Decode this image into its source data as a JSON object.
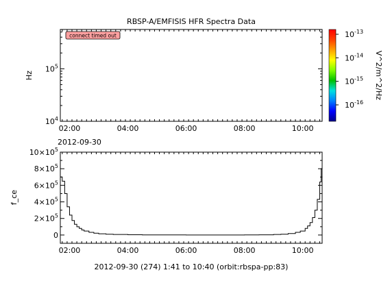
{
  "chart_data": [
    {
      "type": "heatmap",
      "title": "RBSP-A/EMFISIS  HFR Spectra Data",
      "ylabel": "Hz",
      "y_scale": "log",
      "ylim": [
        10000,
        560000
      ],
      "yticks": [
        {
          "value": 10000,
          "base": "10",
          "exp": "4"
        },
        {
          "value": 100000,
          "base": "10",
          "exp": "5"
        }
      ],
      "xlim": [
        "2012-09-30 01:41",
        "2012-09-30 10:40"
      ],
      "xticks": [
        "02:00",
        "04:00",
        "06:00",
        "08:00",
        "10:00"
      ],
      "x_date_label": "2012-09-30",
      "status_message": "connect timed out",
      "colorbar": {
        "label": "V^2/m^2/Hz",
        "scale": "log",
        "ticks": [
          {
            "value": 1e-13,
            "base": "10",
            "exp": "-13"
          },
          {
            "value": 1e-14,
            "base": "10",
            "exp": "-14"
          },
          {
            "value": 1e-15,
            "base": "10",
            "exp": "-15"
          },
          {
            "value": 1e-16,
            "base": "10",
            "exp": "-16"
          }
        ],
        "colors": [
          "#00008b",
          "#0000ff",
          "#0080ff",
          "#00e0e0",
          "#00c000",
          "#80ff00",
          "#ffff00",
          "#ffa000",
          "#ff4000",
          "#ff0000"
        ]
      },
      "values": []
    },
    {
      "type": "line",
      "ylabel": "f_ce",
      "ylim": [
        -100000,
        1000000
      ],
      "yticks": [
        {
          "value": 0,
          "label": "0",
          "exp": ""
        },
        {
          "value": 200000,
          "label": "2×10",
          "exp": "5"
        },
        {
          "value": 400000,
          "label": "4×10",
          "exp": "5"
        },
        {
          "value": 600000,
          "label": "6×10",
          "exp": "5"
        },
        {
          "value": 800000,
          "label": "8×10",
          "exp": "5"
        },
        {
          "value": 1000000,
          "label": "10×10",
          "exp": "5"
        }
      ],
      "xlim": [
        "2012-09-30 01:41",
        "2012-09-30 10:40"
      ],
      "xticks": [
        "02:00",
        "04:00",
        "06:00",
        "08:00",
        "10:00"
      ],
      "xlabel": "2012-09-30 (274) 1:41 to 10:40 (orbit:rbspa-pp:83)",
      "series": [
        {
          "color": "#000000",
          "x": [
            "2012-09-30 01:41",
            "2012-09-30 01:45",
            "2012-09-30 01:50",
            "2012-09-30 01:55",
            "2012-09-30 02:00",
            "2012-09-30 02:05",
            "2012-09-30 02:10",
            "2012-09-30 02:15",
            "2012-09-30 02:20",
            "2012-09-30 02:25",
            "2012-09-30 02:30",
            "2012-09-30 02:40",
            "2012-09-30 02:50",
            "2012-09-30 03:00",
            "2012-09-30 03:15",
            "2012-09-30 03:30",
            "2012-09-30 04:00",
            "2012-09-30 04:30",
            "2012-09-30 05:00",
            "2012-09-30 06:00",
            "2012-09-30 07:00",
            "2012-09-30 08:00",
            "2012-09-30 08:30",
            "2012-09-30 09:00",
            "2012-09-30 09:15",
            "2012-09-30 09:30",
            "2012-09-30 09:45",
            "2012-09-30 09:55",
            "2012-09-30 10:05",
            "2012-09-30 10:10",
            "2012-09-30 10:15",
            "2012-09-30 10:20",
            "2012-09-30 10:25",
            "2012-09-30 10:30",
            "2012-09-30 10:35",
            "2012-09-30 10:38",
            "2012-09-30 10:40"
          ],
          "y": [
            700000,
            650000,
            500000,
            340000,
            240000,
            175000,
            130000,
            100000,
            80000,
            60000,
            48000,
            32000,
            22000,
            15000,
            10000,
            6000,
            3000,
            1500,
            800,
            500,
            700,
            1200,
            2500,
            6000,
            10000,
            18000,
            32000,
            48000,
            80000,
            110000,
            150000,
            210000,
            300000,
            430000,
            640000,
            800000,
            840000
          ]
        }
      ]
    }
  ]
}
